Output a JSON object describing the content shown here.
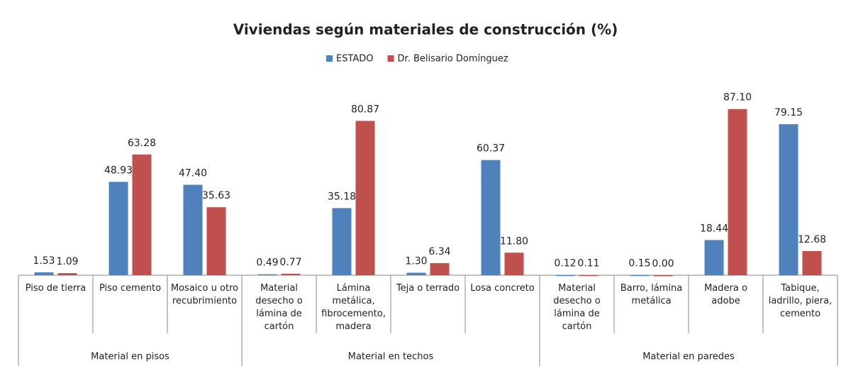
{
  "chart_data": {
    "type": "bar",
    "title": "Viviendas según materiales de construcción (%)",
    "groups": [
      {
        "name": "Material en pisos",
        "categories": [
          "Piso de tierra",
          "Piso cemento",
          "Mosaico u otro recubrimiento"
        ]
      },
      {
        "name": "Material en techos",
        "categories": [
          "Material desecho o lámina de cartón",
          "Lámina metálica, fibrocemento, madera",
          "Teja o terrado",
          "Losa concreto"
        ]
      },
      {
        "name": "Material en paredes",
        "categories": [
          "Material desecho o lámina de cartón",
          "Barro, lámina metálica",
          "Madera o adobe",
          "Tabique, ladrillo, piera, cemento"
        ]
      }
    ],
    "series": [
      {
        "name": "ESTADO",
        "color": "#4f81bd",
        "values": [
          1.53,
          48.93,
          47.4,
          0.49,
          35.18,
          1.3,
          60.37,
          0.12,
          0.15,
          18.44,
          79.15
        ],
        "value_labels": [
          "1.53",
          "48.93",
          "47.40",
          "0.49",
          "35.18",
          "1.30",
          "60.37",
          "0.12",
          "0.15",
          "18.44",
          "79.15"
        ]
      },
      {
        "name": "Dr. Belisario Domínguez",
        "color": "#c0504d",
        "values": [
          1.09,
          63.28,
          35.63,
          0.77,
          80.87,
          6.34,
          11.8,
          0.11,
          0,
          87.1,
          12.68
        ],
        "value_labels": [
          "1.09",
          "63.28",
          "35.63",
          "0.77",
          "80.87",
          "6.34",
          "11.80",
          "0.11",
          "0.00",
          "87.10",
          "12.68"
        ]
      }
    ],
    "ylim": [
      0,
      100
    ]
  }
}
